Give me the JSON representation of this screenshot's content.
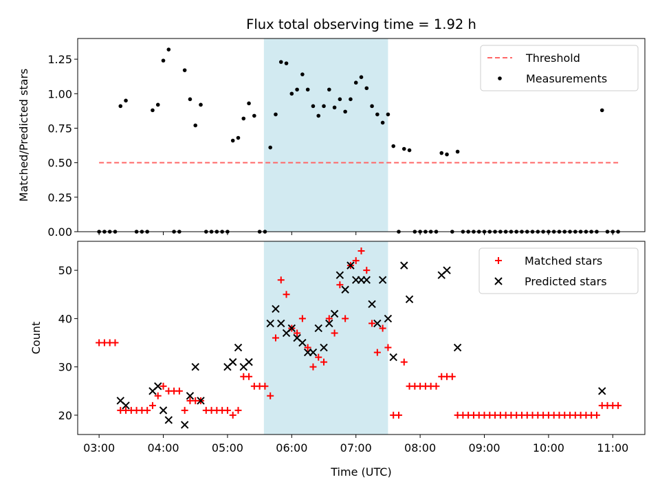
{
  "chart_data": [
    {
      "type": "scatter",
      "title": "Flux total observing time = 1.92 h",
      "xlabel": "",
      "ylabel": "Matched/Predicted stars",
      "xlim": [
        "02:40",
        "11:30"
      ],
      "ylim": [
        0,
        1.4
      ],
      "yticks": [
        "0.00",
        "0.25",
        "0.50",
        "0.75",
        "1.00",
        "1.25"
      ],
      "highlight_span": {
        "start": "05:34",
        "end": "07:30",
        "color": "#add8e6"
      },
      "threshold": {
        "name": "Threshold",
        "value": 0.5,
        "x_start": "03:00",
        "x_end": "11:05",
        "color": "#ff6666"
      },
      "series": [
        {
          "name": "Measurements",
          "color": "#000000",
          "points": [
            [
              "03:00",
              0
            ],
            [
              "03:05",
              0
            ],
            [
              "03:10",
              0
            ],
            [
              "03:15",
              0
            ],
            [
              "03:20",
              0.91
            ],
            [
              "03:25",
              0.95
            ],
            [
              "03:35",
              0
            ],
            [
              "03:40",
              0
            ],
            [
              "03:45",
              0
            ],
            [
              "03:50",
              0.88
            ],
            [
              "03:55",
              0.92
            ],
            [
              "04:00",
              1.24
            ],
            [
              "04:05",
              1.32
            ],
            [
              "04:10",
              0
            ],
            [
              "04:15",
              0
            ],
            [
              "04:20",
              1.17
            ],
            [
              "04:25",
              0.96
            ],
            [
              "04:30",
              0.77
            ],
            [
              "04:35",
              0.92
            ],
            [
              "04:40",
              0
            ],
            [
              "04:45",
              0
            ],
            [
              "04:50",
              0
            ],
            [
              "04:55",
              0
            ],
            [
              "05:00",
              0
            ],
            [
              "05:05",
              0.66
            ],
            [
              "05:10",
              0.68
            ],
            [
              "05:15",
              0.82
            ],
            [
              "05:20",
              0.93
            ],
            [
              "05:25",
              0.84
            ],
            [
              "05:30",
              0
            ],
            [
              "05:35",
              0
            ],
            [
              "05:40",
              0.61
            ],
            [
              "05:45",
              0.85
            ],
            [
              "05:50",
              1.23
            ],
            [
              "05:55",
              1.22
            ],
            [
              "06:00",
              1.0
            ],
            [
              "06:05",
              1.03
            ],
            [
              "06:10",
              1.14
            ],
            [
              "06:15",
              1.03
            ],
            [
              "06:20",
              0.91
            ],
            [
              "06:25",
              0.84
            ],
            [
              "06:30",
              0.91
            ],
            [
              "06:35",
              1.03
            ],
            [
              "06:40",
              0.9
            ],
            [
              "06:45",
              0.96
            ],
            [
              "06:50",
              0.87
            ],
            [
              "06:55",
              0.96
            ],
            [
              "07:00",
              1.08
            ],
            [
              "07:05",
              1.12
            ],
            [
              "07:10",
              1.04
            ],
            [
              "07:15",
              0.91
            ],
            [
              "07:20",
              0.85
            ],
            [
              "07:25",
              0.79
            ],
            [
              "07:30",
              0.85
            ],
            [
              "07:35",
              0.62
            ],
            [
              "07:40",
              0
            ],
            [
              "07:45",
              0.6
            ],
            [
              "07:50",
              0.59
            ],
            [
              "07:55",
              0
            ],
            [
              "08:00",
              0
            ],
            [
              "08:05",
              0
            ],
            [
              "08:10",
              0
            ],
            [
              "08:15",
              0
            ],
            [
              "08:20",
              0.57
            ],
            [
              "08:25",
              0.56
            ],
            [
              "08:30",
              0
            ],
            [
              "08:35",
              0.58
            ],
            [
              "08:40",
              0
            ],
            [
              "08:45",
              0
            ],
            [
              "08:50",
              0
            ],
            [
              "08:55",
              0
            ],
            [
              "09:00",
              0
            ],
            [
              "09:05",
              0
            ],
            [
              "09:10",
              0
            ],
            [
              "09:15",
              0
            ],
            [
              "09:20",
              0
            ],
            [
              "09:25",
              0
            ],
            [
              "09:30",
              0
            ],
            [
              "09:35",
              0
            ],
            [
              "09:40",
              0
            ],
            [
              "09:45",
              0
            ],
            [
              "09:50",
              0
            ],
            [
              "09:55",
              0
            ],
            [
              "10:00",
              0
            ],
            [
              "10:05",
              0
            ],
            [
              "10:10",
              0
            ],
            [
              "10:15",
              0
            ],
            [
              "10:20",
              0
            ],
            [
              "10:25",
              0
            ],
            [
              "10:30",
              0
            ],
            [
              "10:35",
              0
            ],
            [
              "10:40",
              0
            ],
            [
              "10:45",
              0
            ],
            [
              "10:50",
              0.88
            ],
            [
              "10:55",
              0
            ],
            [
              "11:00",
              0
            ],
            [
              "11:05",
              0
            ]
          ]
        }
      ],
      "legend": {
        "position": "top-right",
        "entries": [
          "Threshold",
          "Measurements"
        ]
      }
    },
    {
      "type": "scatter",
      "title": "",
      "xlabel": "Time (UTC)",
      "ylabel": "Count",
      "xlim": [
        "02:40",
        "11:30"
      ],
      "ylim": [
        16,
        56
      ],
      "yticks": [
        "20",
        "30",
        "40",
        "50"
      ],
      "xticks": [
        "03:00",
        "04:00",
        "05:00",
        "06:00",
        "07:00",
        "08:00",
        "09:00",
        "10:00",
        "11:00"
      ],
      "highlight_span": {
        "start": "05:34",
        "end": "07:30",
        "color": "#add8e6"
      },
      "series": [
        {
          "name": "Matched stars",
          "marker": "+",
          "color": "#ff0000",
          "points": [
            [
              "03:00",
              35
            ],
            [
              "03:05",
              35
            ],
            [
              "03:10",
              35
            ],
            [
              "03:15",
              35
            ],
            [
              "03:20",
              21
            ],
            [
              "03:25",
              21
            ],
            [
              "03:30",
              21
            ],
            [
              "03:35",
              21
            ],
            [
              "03:40",
              21
            ],
            [
              "03:45",
              21
            ],
            [
              "03:50",
              22
            ],
            [
              "03:55",
              24
            ],
            [
              "04:00",
              26
            ],
            [
              "04:05",
              25
            ],
            [
              "04:10",
              25
            ],
            [
              "04:15",
              25
            ],
            [
              "04:20",
              21
            ],
            [
              "04:25",
              23
            ],
            [
              "04:30",
              23
            ],
            [
              "04:35",
              23
            ],
            [
              "04:40",
              21
            ],
            [
              "04:45",
              21
            ],
            [
              "04:50",
              21
            ],
            [
              "04:55",
              21
            ],
            [
              "05:00",
              21
            ],
            [
              "05:05",
              20
            ],
            [
              "05:10",
              21
            ],
            [
              "05:15",
              28
            ],
            [
              "05:20",
              28
            ],
            [
              "05:25",
              26
            ],
            [
              "05:30",
              26
            ],
            [
              "05:35",
              26
            ],
            [
              "05:40",
              24
            ],
            [
              "05:45",
              36
            ],
            [
              "05:50",
              48
            ],
            [
              "05:55",
              45
            ],
            [
              "06:00",
              38
            ],
            [
              "06:05",
              37
            ],
            [
              "06:10",
              40
            ],
            [
              "06:15",
              34
            ],
            [
              "06:20",
              30
            ],
            [
              "06:25",
              32
            ],
            [
              "06:30",
              31
            ],
            [
              "06:35",
              40
            ],
            [
              "06:40",
              37
            ],
            [
              "06:45",
              47
            ],
            [
              "06:50",
              40
            ],
            [
              "06:55",
              51
            ],
            [
              "07:00",
              52
            ],
            [
              "07:05",
              54
            ],
            [
              "07:10",
              50
            ],
            [
              "07:15",
              39
            ],
            [
              "07:20",
              33
            ],
            [
              "07:25",
              38
            ],
            [
              "07:30",
              34
            ],
            [
              "07:35",
              20
            ],
            [
              "07:40",
              20
            ],
            [
              "07:45",
              31
            ],
            [
              "07:50",
              26
            ],
            [
              "07:55",
              26
            ],
            [
              "08:00",
              26
            ],
            [
              "08:05",
              26
            ],
            [
              "08:10",
              26
            ],
            [
              "08:15",
              26
            ],
            [
              "08:20",
              28
            ],
            [
              "08:25",
              28
            ],
            [
              "08:30",
              28
            ],
            [
              "08:35",
              20
            ],
            [
              "08:40",
              20
            ],
            [
              "08:45",
              20
            ],
            [
              "08:50",
              20
            ],
            [
              "08:55",
              20
            ],
            [
              "09:00",
              20
            ],
            [
              "09:05",
              20
            ],
            [
              "09:10",
              20
            ],
            [
              "09:15",
              20
            ],
            [
              "09:20",
              20
            ],
            [
              "09:25",
              20
            ],
            [
              "09:30",
              20
            ],
            [
              "09:35",
              20
            ],
            [
              "09:40",
              20
            ],
            [
              "09:45",
              20
            ],
            [
              "09:50",
              20
            ],
            [
              "09:55",
              20
            ],
            [
              "10:00",
              20
            ],
            [
              "10:05",
              20
            ],
            [
              "10:10",
              20
            ],
            [
              "10:15",
              20
            ],
            [
              "10:20",
              20
            ],
            [
              "10:25",
              20
            ],
            [
              "10:30",
              20
            ],
            [
              "10:35",
              20
            ],
            [
              "10:40",
              20
            ],
            [
              "10:45",
              20
            ],
            [
              "10:50",
              22
            ],
            [
              "10:55",
              22
            ],
            [
              "11:00",
              22
            ],
            [
              "11:05",
              22
            ]
          ]
        },
        {
          "name": "Predicted stars",
          "marker": "x",
          "color": "#000000",
          "points": [
            [
              "03:20",
              23
            ],
            [
              "03:25",
              22
            ],
            [
              "03:50",
              25
            ],
            [
              "03:55",
              26
            ],
            [
              "04:00",
              21
            ],
            [
              "04:05",
              19
            ],
            [
              "04:20",
              18
            ],
            [
              "04:25",
              24
            ],
            [
              "04:30",
              30
            ],
            [
              "04:35",
              23
            ],
            [
              "05:00",
              30
            ],
            [
              "05:05",
              31
            ],
            [
              "05:10",
              34
            ],
            [
              "05:15",
              30
            ],
            [
              "05:20",
              31
            ],
            [
              "05:40",
              39
            ],
            [
              "05:45",
              42
            ],
            [
              "05:50",
              39
            ],
            [
              "05:55",
              37
            ],
            [
              "06:00",
              38
            ],
            [
              "06:05",
              36
            ],
            [
              "06:10",
              35
            ],
            [
              "06:15",
              33
            ],
            [
              "06:20",
              33
            ],
            [
              "06:25",
              38
            ],
            [
              "06:30",
              34
            ],
            [
              "06:35",
              39
            ],
            [
              "06:40",
              41
            ],
            [
              "06:45",
              49
            ],
            [
              "06:50",
              46
            ],
            [
              "06:55",
              51
            ],
            [
              "07:00",
              48
            ],
            [
              "07:05",
              48
            ],
            [
              "07:10",
              48
            ],
            [
              "07:15",
              43
            ],
            [
              "07:20",
              39
            ],
            [
              "07:25",
              48
            ],
            [
              "07:30",
              40
            ],
            [
              "07:35",
              32
            ],
            [
              "07:45",
              51
            ],
            [
              "07:50",
              44
            ],
            [
              "08:20",
              49
            ],
            [
              "08:25",
              50
            ],
            [
              "08:35",
              34
            ],
            [
              "10:50",
              25
            ]
          ]
        }
      ],
      "legend": {
        "position": "top-right",
        "entries": [
          "Matched stars",
          "Predicted stars"
        ]
      }
    }
  ]
}
